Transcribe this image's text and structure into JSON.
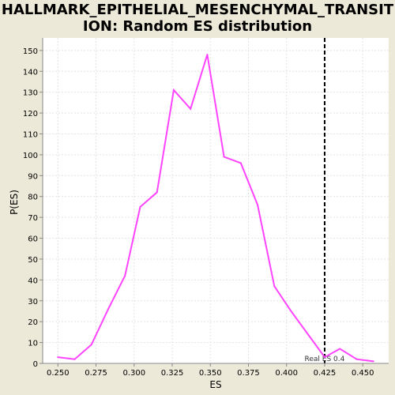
{
  "chart_data": {
    "type": "line",
    "title_line1": "HALLMARK_EPITHELIAL_MESENCHYMAL_TRANSIT",
    "title_line2": "ION: Random ES distribution",
    "xlabel": "ES",
    "ylabel": "P(ES)",
    "xlim": [
      0.24,
      0.467
    ],
    "ylim": [
      0,
      156
    ],
    "x_ticks": [
      0.25,
      0.275,
      0.3,
      0.325,
      0.35,
      0.375,
      0.4,
      0.425,
      0.45
    ],
    "x_tick_labels": [
      "0.250",
      "0.275",
      "0.300",
      "0.325",
      "0.350",
      "0.375",
      "0.400",
      "0.425",
      "0.450"
    ],
    "y_ticks": [
      0,
      10,
      20,
      30,
      40,
      50,
      60,
      70,
      80,
      90,
      100,
      110,
      120,
      130,
      140,
      150
    ],
    "grid": true,
    "series": [
      {
        "color": "#FF44FF",
        "x": [
          0.25,
          0.261,
          0.272,
          0.283,
          0.294,
          0.304,
          0.315,
          0.326,
          0.337,
          0.348,
          0.359,
          0.37,
          0.381,
          0.392,
          0.403,
          0.414,
          0.425,
          0.435,
          0.446,
          0.457
        ],
        "y": [
          3,
          2,
          9,
          26,
          42,
          75,
          82,
          131,
          122,
          148,
          99,
          96,
          76,
          37,
          25,
          14,
          3,
          7,
          2,
          1
        ]
      }
    ],
    "annotation": {
      "label": "Real ES 0.4",
      "x": 0.425,
      "color": "#000000"
    },
    "colors": {
      "background": "#ECE9D8",
      "plot_background": "#FFFFFF",
      "grid": "#E4E4E4",
      "line": "#FF44FF"
    }
  }
}
